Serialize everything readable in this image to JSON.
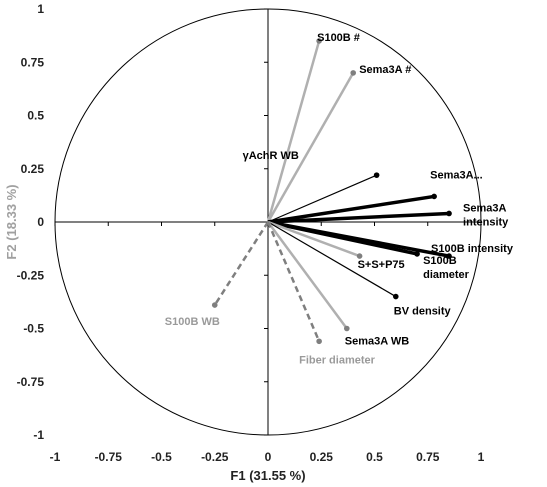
{
  "chart_data": {
    "type": "scatter",
    "subtype": "correlation-circle",
    "title": "",
    "xlabel": "F1 (31.55 %)",
    "ylabel": "F2 (18.33 %)",
    "xlim": [
      -1,
      1
    ],
    "ylim": [
      -1,
      1
    ],
    "xticks": [
      "-1",
      "-0.75",
      "-0.5",
      "-0.25",
      "0",
      "0.25",
      "0.5",
      "0.75",
      "1"
    ],
    "yticks": [
      "1",
      "0.75",
      "0.5",
      "0.25",
      "0",
      "-0.25",
      "-0.5",
      "-0.75",
      "-1"
    ],
    "grid": false,
    "unit_circle": true,
    "colors": {
      "black": "#000000",
      "gray": "#b0b0b0",
      "dark_gray": "#7f7f7f",
      "xlabel": "#222222",
      "ylabel": "#a0a0a0"
    },
    "vectors": [
      {
        "label": "S100B #",
        "x": 0.24,
        "y": 0.85,
        "style": "gray"
      },
      {
        "label": "Sema3A #",
        "x": 0.4,
        "y": 0.7,
        "style": "gray"
      },
      {
        "label": "γAchR WB",
        "x": 0.51,
        "y": 0.22,
        "style": "thin"
      },
      {
        "label": "Sema3A...",
        "x": 0.78,
        "y": 0.12,
        "style": "bold"
      },
      {
        "label": "Sema3A intensity",
        "x": 0.85,
        "y": 0.04,
        "style": "bold"
      },
      {
        "label": "S100B intensity",
        "x": 0.85,
        "y": -0.16,
        "style": "bold"
      },
      {
        "label": "S100B diameter",
        "x": 0.7,
        "y": -0.15,
        "style": "bold"
      },
      {
        "label": "S+S+P75",
        "x": 0.43,
        "y": -0.16,
        "style": "gray"
      },
      {
        "label": "BV density",
        "x": 0.6,
        "y": -0.35,
        "style": "thin"
      },
      {
        "label": "Sema3A WB",
        "x": 0.37,
        "y": -0.5,
        "style": "gray"
      },
      {
        "label": "Fiber diameter",
        "x": 0.24,
        "y": -0.56,
        "style": "dashed-dark"
      },
      {
        "label": "S100B WB",
        "x": -0.25,
        "y": -0.39,
        "style": "dashed-dark"
      }
    ]
  }
}
